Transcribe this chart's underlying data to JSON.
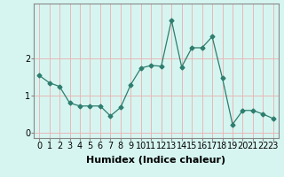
{
  "x": [
    0,
    1,
    2,
    3,
    4,
    5,
    6,
    7,
    8,
    9,
    10,
    11,
    12,
    13,
    14,
    15,
    16,
    17,
    18,
    19,
    20,
    21,
    22,
    23
  ],
  "y": [
    1.55,
    1.35,
    1.25,
    0.8,
    0.72,
    0.72,
    0.72,
    0.45,
    0.68,
    1.3,
    1.75,
    1.82,
    1.8,
    3.05,
    1.78,
    2.3,
    2.3,
    2.6,
    1.48,
    0.22,
    0.6,
    0.6,
    0.5,
    0.38
  ],
  "line_color": "#2e7d6e",
  "marker": "D",
  "marker_size": 2.5,
  "bg_color": "#d6f5f0",
  "grid_color": "#e8b8b8",
  "xlabel": "Humidex (Indice chaleur)",
  "xlim": [
    -0.5,
    23.5
  ],
  "ylim": [
    -0.15,
    3.5
  ],
  "yticks": [
    0,
    1,
    2
  ],
  "xtick_labels": [
    "0",
    "1",
    "2",
    "3",
    "4",
    "5",
    "6",
    "7",
    "8",
    "9",
    "10",
    "11",
    "12",
    "13",
    "14",
    "15",
    "16",
    "17",
    "18",
    "19",
    "20",
    "21",
    "22",
    "23"
  ],
  "xlabel_fontsize": 8,
  "tick_fontsize": 7
}
